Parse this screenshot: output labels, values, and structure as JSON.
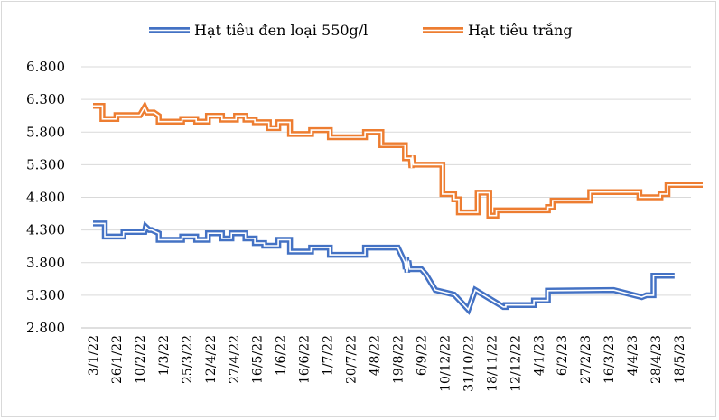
{
  "chart_data": {
    "type": "line",
    "title": "",
    "xlabel": "",
    "ylabel": "",
    "ylim": [
      2800,
      6800
    ],
    "yticks": [
      "2.800",
      "3.300",
      "3.800",
      "4.300",
      "4.800",
      "5.300",
      "5.800",
      "6.300",
      "6.800"
    ],
    "ytick_values": [
      2800,
      3300,
      3800,
      4300,
      4800,
      5300,
      5800,
      6300,
      6800
    ],
    "xticks": [
      "3/1/22",
      "26/1/22",
      "10/2/22",
      "1/3/22",
      "25/3/22",
      "12/4/22",
      "27/4/22",
      "16/5/22",
      "1/6/22",
      "16/6/22",
      "1/7/22",
      "20/7/22",
      "4/8/22",
      "19/8/22",
      "6/9/22",
      "10/12/22",
      "31/10/22",
      "18/11/22",
      "12/12/22",
      "4/1/23",
      "6/2/23",
      "27/2/23",
      "16/3/23",
      "4/4/23",
      "28/4/23",
      "18/5/23"
    ],
    "legend_position": "top",
    "series": [
      {
        "name": "Hạt tiêu đen loại 550g/l",
        "color": "#4472C4",
        "x": [
          0,
          0.5,
          0.5,
          1.3,
          1.3,
          2.2,
          2.25,
          2.4,
          2.5,
          2.8,
          2.8,
          3.8,
          3.8,
          4.4,
          4.4,
          4.9,
          4.9,
          5.5,
          5.5,
          5.9,
          5.9,
          6.5,
          6.5,
          6.9,
          6.9,
          7.3,
          7.3,
          7.9,
          7.9,
          8.4,
          8.4,
          9.3,
          9.3,
          10.1,
          10.1,
          11.6,
          11.6,
          13.0,
          13.3,
          13.33,
          13.36,
          13.4,
          13.45,
          13.5,
          13.6,
          14.0,
          14.2,
          14.2,
          14.6,
          14.6,
          15.4,
          15.4,
          16.0,
          16.0,
          16.3,
          16.3,
          17.5,
          17.6,
          17.6,
          18.8,
          18.8,
          19.4,
          19.4,
          22.2,
          22.2,
          23.4,
          23.4,
          23.6,
          23.9,
          23.9,
          24.8
        ],
        "values": [
          4400,
          4400,
          4200,
          4200,
          4270,
          4270,
          4350,
          4300,
          4300,
          4250,
          4150,
          4150,
          4200,
          4200,
          4150,
          4150,
          4250,
          4250,
          4170,
          4170,
          4250,
          4250,
          4170,
          4170,
          4100,
          4100,
          4060,
          4060,
          4150,
          4150,
          3970,
          3970,
          4030,
          4030,
          3920,
          3920,
          4030,
          4030,
          3800,
          3700,
          3880,
          3650,
          3830,
          3700,
          3700,
          3700,
          3620,
          3620,
          3380,
          3380,
          3310,
          3310,
          3080,
          3080,
          3380,
          3380,
          3120,
          3120,
          3150,
          3150,
          3220,
          3220,
          3370,
          3380,
          3380,
          3270,
          3270,
          3300,
          3300,
          3600,
          3600
        ]
      },
      {
        "name": "Hạt tiêu trắng",
        "color": "#ED7D31",
        "x": [
          0,
          0.4,
          0.4,
          1.0,
          1.0,
          2.0,
          2.2,
          2.3,
          2.6,
          2.8,
          2.8,
          3.8,
          3.8,
          4.4,
          4.4,
          4.9,
          4.9,
          5.5,
          5.5,
          6.1,
          6.1,
          6.5,
          6.5,
          6.9,
          6.9,
          7.5,
          7.5,
          7.9,
          7.9,
          8.4,
          8.4,
          9.3,
          9.3,
          10.1,
          10.1,
          11.6,
          11.6,
          12.3,
          12.3,
          13.3,
          13.3,
          13.55,
          13.58,
          13.62,
          13.66,
          13.7,
          14.9,
          14.9,
          15.4,
          15.4,
          15.6,
          15.6,
          16.4,
          16.4,
          16.9,
          16.9,
          17.2,
          17.2,
          19.4,
          19.4,
          19.6,
          19.6,
          21.2,
          21.2,
          23.3,
          23.3,
          24.2,
          24.2,
          24.5,
          24.5,
          26
        ],
        "values": [
          6200,
          6200,
          6000,
          6000,
          6060,
          6060,
          6180,
          6100,
          6100,
          6050,
          5960,
          5960,
          6000,
          6000,
          5960,
          5960,
          6050,
          6050,
          5990,
          5990,
          6050,
          6050,
          5990,
          5990,
          5950,
          5950,
          5860,
          5860,
          5950,
          5950,
          5770,
          5770,
          5830,
          5830,
          5720,
          5720,
          5800,
          5800,
          5600,
          5600,
          5400,
          5400,
          5250,
          5440,
          5300,
          5300,
          5300,
          4850,
          4850,
          4770,
          4770,
          4570,
          4570,
          4870,
          4870,
          4520,
          4520,
          4600,
          4600,
          4650,
          4650,
          4750,
          4750,
          4880,
          4880,
          4800,
          4800,
          4850,
          4850,
          4990,
          4990
        ]
      }
    ]
  }
}
